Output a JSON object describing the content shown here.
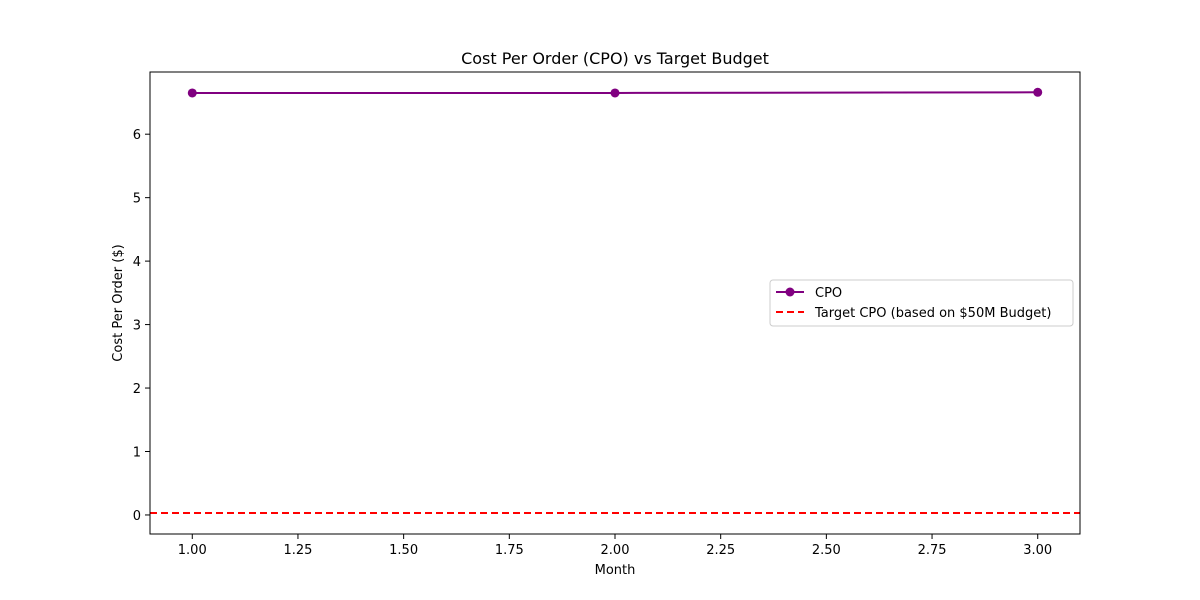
{
  "chart_data": {
    "type": "line",
    "title": "Cost Per Order (CPO) vs Target Budget",
    "xlabel": "Month",
    "ylabel": "Cost Per Order ($)",
    "xlim": [
      0.9,
      3.1
    ],
    "ylim": [
      -0.3,
      6.98
    ],
    "xticks": [
      1.0,
      1.25,
      1.5,
      1.75,
      2.0,
      2.25,
      2.5,
      2.75,
      3.0
    ],
    "xtick_labels": [
      "1.00",
      "1.25",
      "1.50",
      "1.75",
      "2.00",
      "2.25",
      "2.50",
      "2.75",
      "3.00"
    ],
    "yticks": [
      0,
      1,
      2,
      3,
      4,
      5,
      6
    ],
    "ytick_labels": [
      "0",
      "1",
      "2",
      "3",
      "4",
      "5",
      "6"
    ],
    "grid": false,
    "legend_position": "center-right",
    "series": [
      {
        "name": "CPO",
        "kind": "line-markers",
        "color": "#800080",
        "x": [
          1,
          2,
          3
        ],
        "y": [
          6.65,
          6.65,
          6.66
        ]
      },
      {
        "name": "Target CPO (based on $50M Budget)",
        "kind": "hline-dashed",
        "color": "#ff0000",
        "y": 0.03
      }
    ]
  }
}
